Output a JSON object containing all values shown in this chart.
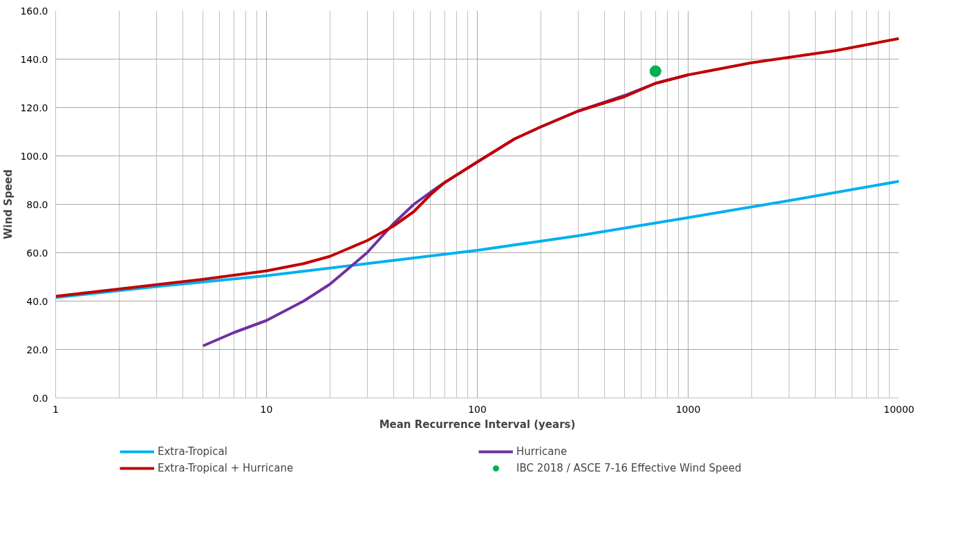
{
  "chart_data": {
    "type": "line",
    "xlabel": "Mean Recurrence Interval (years)",
    "ylabel": "Wind Speed",
    "log": "x",
    "grid": true,
    "legend": "bottom",
    "line_style": "solid",
    "xlim": [
      1,
      10000
    ],
    "xticks": [
      1,
      10,
      100,
      1000,
      10000
    ],
    "ylim": [
      0,
      160
    ],
    "yticks": [
      {
        "value": 0,
        "label": "0.0"
      },
      {
        "value": 20,
        "label": "20.0"
      },
      {
        "value": 40,
        "label": "40.0"
      },
      {
        "value": 60,
        "label": "60.0"
      },
      {
        "value": 80,
        "label": "80.0"
      },
      {
        "value": 100,
        "label": "100.0"
      },
      {
        "value": 120,
        "label": "120.0"
      },
      {
        "value": 140,
        "label": "140.0"
      },
      {
        "value": 160,
        "label": "160.0"
      }
    ],
    "series": [
      {
        "name": "Extra-Tropical",
        "color": "#00b0f0",
        "x": [
          1,
          3,
          10,
          30,
          100,
          300,
          1000,
          3000,
          10000
        ],
        "values": [
          41.5,
          46,
          50.5,
          55.5,
          61,
          67,
          74.5,
          81.5,
          89.5
        ]
      },
      {
        "name": "Hurricane",
        "color": "#7030a0",
        "x": [
          5,
          7,
          10,
          15,
          20,
          30,
          40,
          50,
          60,
          70,
          100,
          150,
          200,
          300,
          500,
          700,
          1000
        ],
        "values": [
          21.5,
          27,
          32,
          40,
          47,
          60,
          72,
          80,
          85,
          89,
          97.5,
          107,
          112,
          118.5,
          125,
          130,
          133.5
        ]
      },
      {
        "name": "Extra-Tropical + Hurricane",
        "color": "#c00000",
        "x": [
          1,
          2,
          5,
          10,
          15,
          20,
          30,
          40,
          50,
          60,
          70,
          100,
          150,
          200,
          300,
          500,
          700,
          1000,
          2000,
          5000,
          10000
        ],
        "values": [
          42,
          45,
          49,
          52.5,
          55.5,
          58.5,
          65,
          71,
          77,
          84,
          89,
          97.5,
          107,
          112,
          118.5,
          124.5,
          130,
          133.5,
          138.5,
          143.5,
          148.5
        ]
      },
      {
        "name": "IBC 2018 / ASCE 7-16 Effective Wind Speed",
        "type": "scatter",
        "marker": "circle",
        "color": "#00b050",
        "x": [
          700
        ],
        "values": [
          135
        ]
      }
    ]
  }
}
